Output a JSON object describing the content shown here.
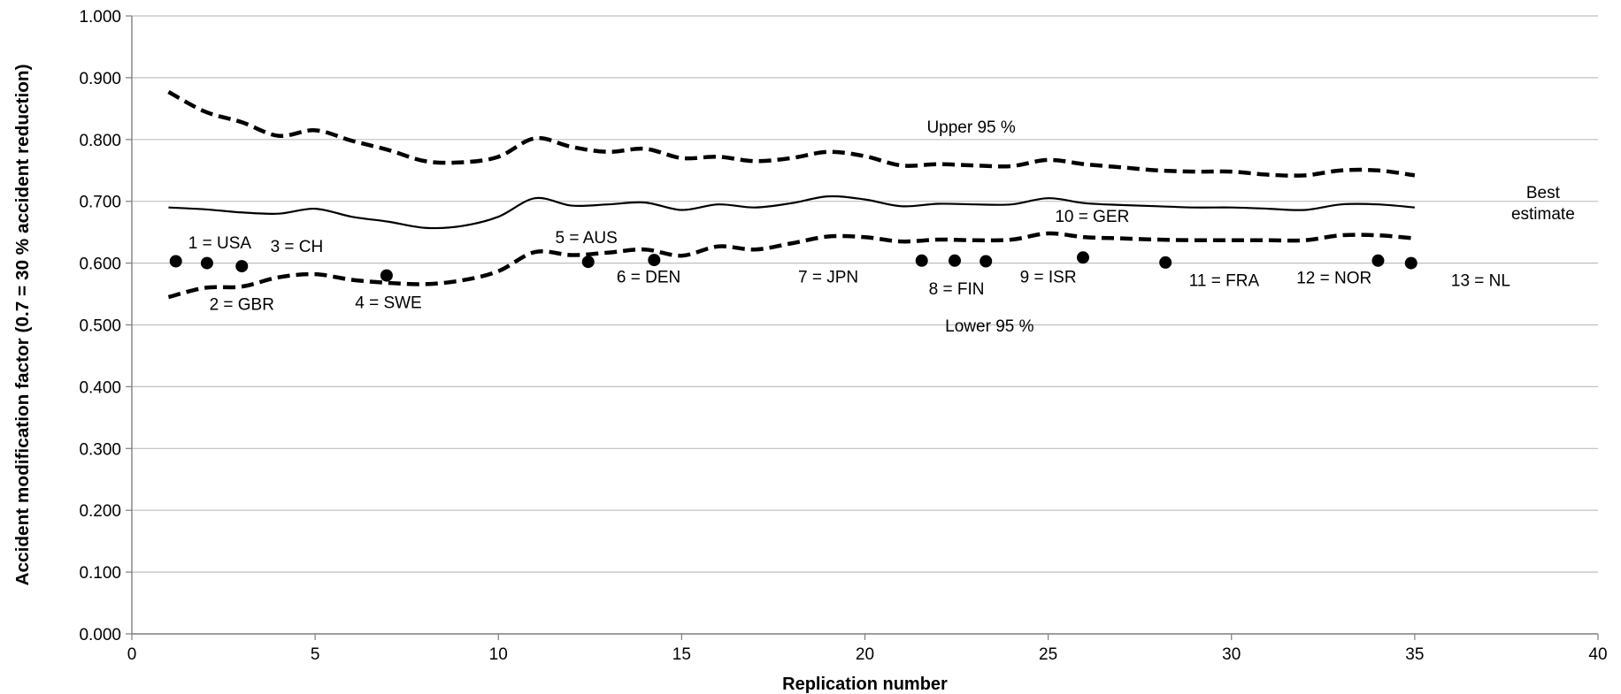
{
  "chart_data": {
    "type": "line",
    "title": "",
    "xlabel": "Replication number",
    "ylabel": "Accident modification factor (0.7 = 30 % accident reduction)",
    "xlim": [
      0,
      40
    ],
    "ylim": [
      0,
      1
    ],
    "x_ticks": [
      0,
      5,
      10,
      15,
      20,
      25,
      30,
      35,
      40
    ],
    "y_ticks": [
      "0.000",
      "0.100",
      "0.200",
      "0.300",
      "0.400",
      "0.500",
      "0.600",
      "0.700",
      "0.800",
      "0.900",
      "1.000"
    ],
    "grid": "horizontal",
    "colors": {
      "lines": "#000000",
      "grid": "#bfbfbf",
      "axis": "#7f7f7f"
    },
    "series": [
      {
        "name": "Upper 95 %",
        "style": "dashed",
        "x": [
          1,
          2,
          3,
          4,
          5,
          6,
          7,
          8,
          9,
          10,
          11,
          12,
          13,
          14,
          15,
          16,
          17,
          18,
          19,
          20,
          21,
          22,
          23,
          24,
          25,
          26,
          27,
          28,
          29,
          30,
          31,
          32,
          33,
          34,
          35
        ],
        "values": [
          0.877,
          0.845,
          0.828,
          0.806,
          0.815,
          0.798,
          0.783,
          0.765,
          0.763,
          0.772,
          0.802,
          0.788,
          0.78,
          0.785,
          0.77,
          0.772,
          0.765,
          0.77,
          0.78,
          0.773,
          0.758,
          0.76,
          0.758,
          0.757,
          0.767,
          0.76,
          0.755,
          0.75,
          0.748,
          0.748,
          0.743,
          0.742,
          0.75,
          0.75,
          0.742
        ]
      },
      {
        "name": "Best estimate",
        "style": "solid",
        "x": [
          1,
          2,
          3,
          4,
          5,
          6,
          7,
          8,
          9,
          10,
          11,
          12,
          13,
          14,
          15,
          16,
          17,
          18,
          19,
          20,
          21,
          22,
          23,
          24,
          25,
          26,
          27,
          28,
          29,
          30,
          31,
          32,
          33,
          34,
          35
        ],
        "values": [
          0.69,
          0.687,
          0.682,
          0.68,
          0.688,
          0.675,
          0.667,
          0.657,
          0.66,
          0.675,
          0.705,
          0.693,
          0.695,
          0.698,
          0.686,
          0.695,
          0.69,
          0.697,
          0.708,
          0.703,
          0.692,
          0.696,
          0.695,
          0.695,
          0.705,
          0.697,
          0.694,
          0.692,
          0.69,
          0.69,
          0.688,
          0.686,
          0.695,
          0.695,
          0.69
        ]
      },
      {
        "name": "Lower 95 %",
        "style": "dashed",
        "x": [
          1,
          2,
          3,
          4,
          5,
          6,
          7,
          8,
          9,
          10,
          11,
          12,
          13,
          14,
          15,
          16,
          17,
          18,
          19,
          20,
          21,
          22,
          23,
          24,
          25,
          26,
          27,
          28,
          29,
          30,
          31,
          32,
          33,
          34,
          35
        ],
        "values": [
          0.545,
          0.56,
          0.562,
          0.577,
          0.582,
          0.573,
          0.568,
          0.566,
          0.572,
          0.587,
          0.618,
          0.613,
          0.617,
          0.622,
          0.612,
          0.627,
          0.622,
          0.632,
          0.643,
          0.642,
          0.635,
          0.638,
          0.637,
          0.638,
          0.648,
          0.642,
          0.64,
          0.638,
          0.637,
          0.637,
          0.637,
          0.637,
          0.645,
          0.645,
          0.64
        ]
      }
    ],
    "series_labels": [
      {
        "text": "Upper 95 %",
        "x": 22.9,
        "y": 0.811,
        "anchor": "middle"
      },
      {
        "lines": [
          "Best",
          "estimate"
        ],
        "x": 38.5,
        "y": 0.705,
        "anchor": "middle"
      },
      {
        "text": "Lower 95 %",
        "x": 23.4,
        "y": 0.489,
        "anchor": "middle"
      }
    ],
    "points": [
      {
        "label": "1 = USA",
        "x": 1.2,
        "y": 0.603,
        "label_x": 2.4,
        "label_y": 0.624,
        "anchor": "middle"
      },
      {
        "label": "2 = GBR",
        "x": 2.05,
        "y": 0.6,
        "label_x": 3.0,
        "label_y": 0.524,
        "anchor": "middle"
      },
      {
        "label": "3 = CH",
        "x": 3.0,
        "y": 0.595,
        "label_x": 4.5,
        "label_y": 0.618,
        "anchor": "middle"
      },
      {
        "label": "4 = SWE",
        "x": 6.95,
        "y": 0.58,
        "label_x": 7.0,
        "label_y": 0.527,
        "anchor": "middle"
      },
      {
        "label": "5 = AUS",
        "x": 12.45,
        "y": 0.602,
        "label_x": 12.4,
        "label_y": 0.632,
        "anchor": "middle"
      },
      {
        "label": "6 = DEN",
        "x": 14.25,
        "y": 0.605,
        "label_x": 14.1,
        "label_y": 0.569,
        "anchor": "middle"
      },
      {
        "label": "7 = JPN",
        "x": 21.55,
        "y": 0.604,
        "label_x": 19.0,
        "label_y": 0.569,
        "anchor": "middle"
      },
      {
        "label": "8 = FIN",
        "x": 22.45,
        "y": 0.604,
        "label_x": 22.5,
        "label_y": 0.549,
        "anchor": "middle"
      },
      {
        "label": "9 = ISR",
        "x": 23.3,
        "y": 0.603,
        "label_x": 25.0,
        "label_y": 0.569,
        "anchor": "middle"
      },
      {
        "label": "10 = GER",
        "x": 25.95,
        "y": 0.609,
        "label_x": 26.2,
        "label_y": 0.667,
        "anchor": "middle"
      },
      {
        "label": "11 = FRA",
        "x": 28.2,
        "y": 0.601,
        "label_x": 29.8,
        "label_y": 0.563,
        "anchor": "middle"
      },
      {
        "label": "12 = NOR",
        "x": 34.0,
        "y": 0.604,
        "label_x": 32.8,
        "label_y": 0.567,
        "anchor": "middle"
      },
      {
        "label": "13 = NL",
        "x": 34.9,
        "y": 0.6,
        "label_x": 36.8,
        "label_y": 0.563,
        "anchor": "middle"
      }
    ]
  }
}
